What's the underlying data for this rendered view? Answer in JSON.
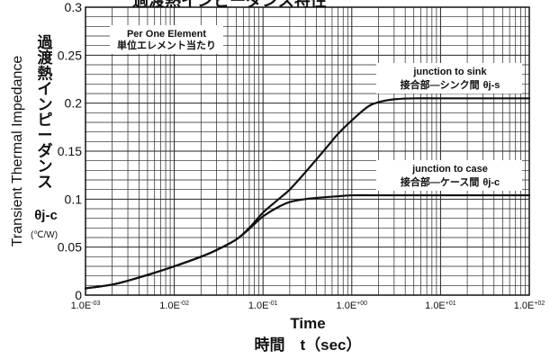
{
  "chart_data": {
    "type": "line",
    "title": "過渡熱インピーダンス特性",
    "xlabel": "Time",
    "xlabel_jp": "時間　t（sec）",
    "ylabel": "Transient Thermal Impedance",
    "ylabel_jp": "過渡熱インピーダンス",
    "ylabel_symbol": "θj-c",
    "ylabel_unit": "(℃/W)",
    "x_scale": "log",
    "xlim": [
      0.001,
      100
    ],
    "ylim": [
      0,
      0.3
    ],
    "grid": true,
    "x_ticks": [
      {
        "value": 0.001,
        "label": "1.0E-03"
      },
      {
        "value": 0.01,
        "label": "1.0E-02"
      },
      {
        "value": 0.1,
        "label": "1.0E-01"
      },
      {
        "value": 1,
        "label": "1.0E+00"
      },
      {
        "value": 10,
        "label": "1.0E+01"
      },
      {
        "value": 100,
        "label": "1.0E+02"
      }
    ],
    "y_ticks": [
      {
        "value": 0,
        "label": "0"
      },
      {
        "value": 0.05,
        "label": "0.05"
      },
      {
        "value": 0.1,
        "label": "0.1"
      },
      {
        "value": 0.15,
        "label": "0.15"
      },
      {
        "value": 0.2,
        "label": "0.2"
      },
      {
        "value": 0.25,
        "label": "0.25"
      },
      {
        "value": 0.3,
        "label": "0.3"
      }
    ],
    "series": [
      {
        "label_en": "junction to sink",
        "label_jp": "接合部—シンク間",
        "label_symbol": "θj-s",
        "x": [
          0.001,
          0.002,
          0.003,
          0.005,
          0.01,
          0.02,
          0.03,
          0.05,
          0.07,
          0.1,
          0.15,
          0.2,
          0.3,
          0.5,
          0.7,
          1,
          1.5,
          2,
          3,
          5,
          10,
          30,
          100
        ],
        "y": [
          0.007,
          0.011,
          0.015,
          0.021,
          0.03,
          0.04,
          0.047,
          0.058,
          0.07,
          0.086,
          0.1,
          0.11,
          0.128,
          0.152,
          0.168,
          0.182,
          0.196,
          0.201,
          0.204,
          0.205,
          0.205,
          0.205,
          0.205
        ]
      },
      {
        "label_en": "junction to case",
        "label_jp": "接合部—ケース間",
        "label_symbol": "θj-c",
        "x": [
          0.001,
          0.002,
          0.003,
          0.005,
          0.01,
          0.02,
          0.03,
          0.05,
          0.07,
          0.1,
          0.15,
          0.2,
          0.3,
          0.5,
          0.7,
          1,
          2,
          5,
          10,
          30,
          100
        ],
        "y": [
          0.007,
          0.011,
          0.015,
          0.021,
          0.03,
          0.04,
          0.047,
          0.058,
          0.069,
          0.082,
          0.092,
          0.097,
          0.1,
          0.102,
          0.103,
          0.104,
          0.104,
          0.104,
          0.104,
          0.104,
          0.104
        ]
      }
    ],
    "annotation": {
      "line1": "Per One Element",
      "line2": "単位エレメント当たり"
    }
  }
}
